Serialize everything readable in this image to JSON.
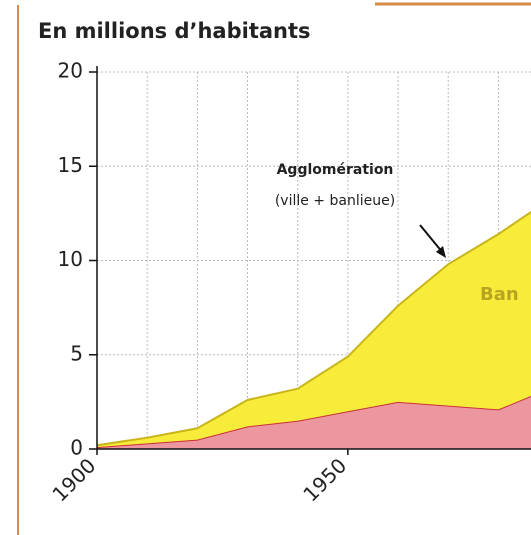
{
  "chart_data": {
    "type": "area",
    "title": "En millions d’habitants",
    "x": [
      1900,
      1910,
      1920,
      1930,
      1940,
      1950,
      1960,
      1970,
      1980,
      1990
    ],
    "series": [
      {
        "color": "#ec97a0",
        "line": "#c8313a",
        "values": [
          0.1,
          0.3,
          0.5,
          1.2,
          1.5,
          2.0,
          2.5,
          2.3,
          2.1,
          3.2
        ]
      },
      {
        "color": "#f7ec3a",
        "line": "#c9b41a",
        "values": [
          0.1,
          0.3,
          0.6,
          1.4,
          1.7,
          2.9,
          5.1,
          7.5,
          9.3,
          10.0
        ]
      }
    ],
    "stacked": true,
    "xlim": [
      1900,
      1986.5
    ],
    "xticks": [
      1900,
      1950
    ],
    "x_grid": [
      1910,
      1920,
      1930,
      1940,
      1950,
      1960,
      1970,
      1980
    ],
    "ylim": [
      0,
      20
    ],
    "yticks": [
      0,
      5,
      10,
      15,
      20
    ],
    "grid": true,
    "annotations": [
      "Agglomération",
      "(ville + banlieue)",
      "Ban"
    ]
  }
}
